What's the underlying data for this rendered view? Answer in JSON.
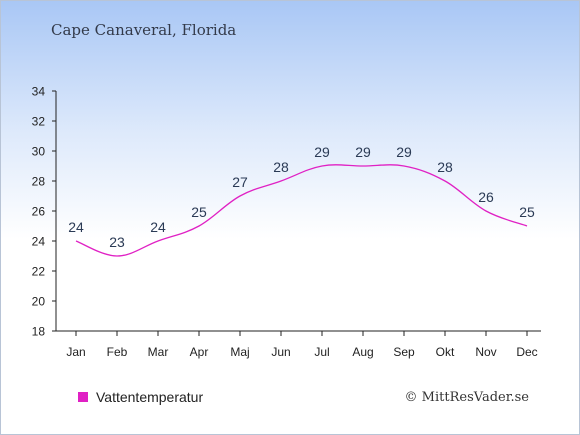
{
  "title": "Cape Canaveral, Florida",
  "credit": "© MittResVader.se",
  "colors": {
    "series": "#e021c4",
    "axis": "#222222",
    "label": "#2a3a55"
  },
  "chart_data": {
    "type": "line",
    "categories": [
      "Jan",
      "Feb",
      "Mar",
      "Apr",
      "Maj",
      "Jun",
      "Jul",
      "Aug",
      "Sep",
      "Okt",
      "Nov",
      "Dec"
    ],
    "series": [
      {
        "name": "Vattentemperatur",
        "values": [
          24,
          23,
          24,
          25,
          27,
          28,
          29,
          29,
          29,
          28,
          26,
          25
        ]
      }
    ],
    "plotted_values": [
      24,
      23,
      24,
      25,
      27,
      28,
      29,
      29,
      29,
      28,
      26,
      25
    ],
    "ylim": [
      18,
      34
    ],
    "yticks": [
      18,
      20,
      22,
      24,
      26,
      28,
      30,
      32,
      34
    ],
    "grid": false,
    "legend_position": "bottom-left"
  }
}
